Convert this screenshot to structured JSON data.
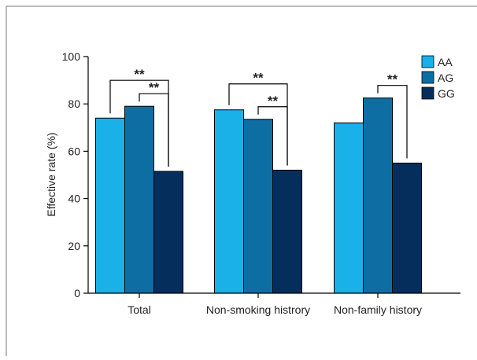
{
  "chart_data": {
    "type": "bar",
    "title": "",
    "xlabel": "",
    "ylabel": "Effective rate (%)",
    "ylim": [
      0,
      100
    ],
    "yticks": [
      "0",
      "20",
      "40",
      "60",
      "80",
      "100"
    ],
    "categories": [
      "Total",
      "Non-smoking histrory",
      "Non-family history"
    ],
    "series": [
      {
        "name": "AA",
        "color": "#19b1e8",
        "values": [
          74,
          77.5,
          72
        ]
      },
      {
        "name": "AG",
        "color": "#0d6ea3",
        "values": [
          79,
          73.5,
          82.5
        ]
      },
      {
        "name": "GG",
        "color": "#062e5c",
        "values": [
          51.5,
          52,
          55
        ]
      }
    ],
    "legend_placement": "top-right",
    "grid": false,
    "significance": [
      {
        "category": 0,
        "from_series": 0,
        "to_series": 2,
        "label": "**"
      },
      {
        "category": 0,
        "from_series": 1,
        "to_series": 2,
        "label": "**"
      },
      {
        "category": 1,
        "from_series": 0,
        "to_series": 2,
        "label": "**"
      },
      {
        "category": 1,
        "from_series": 1,
        "to_series": 2,
        "label": "**"
      },
      {
        "category": 2,
        "from_series": 1,
        "to_series": 2,
        "label": "**"
      }
    ]
  }
}
